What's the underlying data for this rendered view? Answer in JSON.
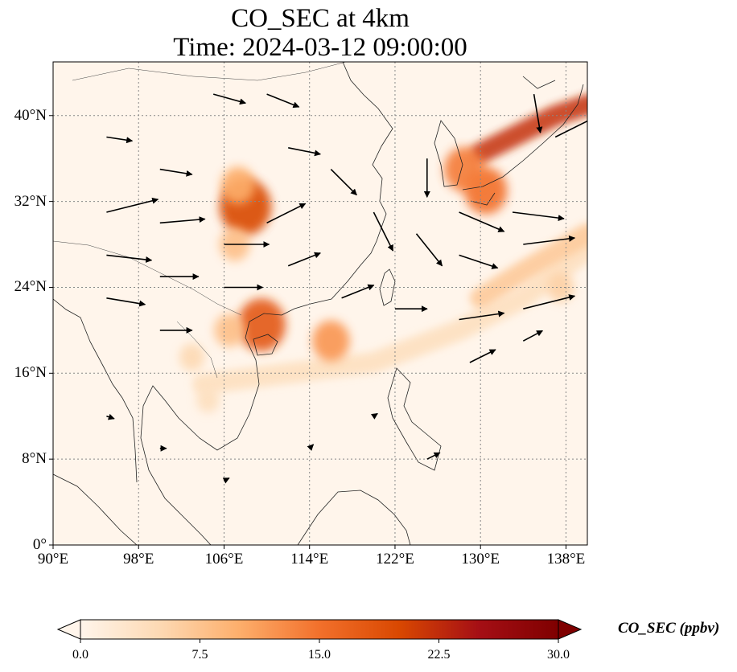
{
  "title": {
    "line1": "CO_SEC at 4km",
    "line2": "Time: 2024-03-12 09:00:00"
  },
  "map": {
    "lon_range": [
      90,
      140
    ],
    "lat_range": [
      0,
      45
    ],
    "lat_ticks": [
      {
        "value": 40,
        "label": "40°N"
      },
      {
        "value": 32,
        "label": "32°N"
      },
      {
        "value": 24,
        "label": "24°N"
      },
      {
        "value": 16,
        "label": "16°N"
      },
      {
        "value": 8,
        "label": "8°N"
      },
      {
        "value": 0,
        "label": "0°"
      }
    ],
    "lon_ticks": [
      {
        "value": 90,
        "label": "90°E"
      },
      {
        "value": 98,
        "label": "98°E"
      },
      {
        "value": 106,
        "label": "106°E"
      },
      {
        "value": 114,
        "label": "114°E"
      },
      {
        "value": 122,
        "label": "122°E"
      },
      {
        "value": 130,
        "label": "130°E"
      },
      {
        "value": 138,
        "label": "138°E"
      }
    ],
    "gridlines": true,
    "plume_areas": [
      {
        "lon": 108.0,
        "lat": 31.5,
        "value": 20
      },
      {
        "lon": 107.3,
        "lat": 33.5,
        "value": 10
      },
      {
        "lon": 107.0,
        "lat": 28.0,
        "value": 8
      },
      {
        "lon": 109.5,
        "lat": 20.5,
        "value": 18
      },
      {
        "lon": 106.5,
        "lat": 20.0,
        "value": 8
      },
      {
        "lon": 116.0,
        "lat": 19.0,
        "value": 12
      },
      {
        "lon": 103.0,
        "lat": 17.5,
        "value": 5
      },
      {
        "lon": 104.5,
        "lat": 13.5,
        "value": 4
      },
      {
        "lon": 130.5,
        "lat": 33.0,
        "value": 15
      },
      {
        "lon": 128.5,
        "lat": 35.0,
        "value": 14
      },
      {
        "lon": 137.5,
        "lat": 24.0,
        "value": 6
      }
    ],
    "plume_bands": [
      {
        "points": [
          [
            130,
            36.5
          ],
          [
            134,
            38.5
          ],
          [
            137,
            40.0
          ],
          [
            140,
            41.0
          ]
        ],
        "value": 22
      },
      {
        "points": [
          [
            104,
            15.0
          ],
          [
            112,
            16.0
          ],
          [
            120,
            17.0
          ],
          [
            128,
            20.0
          ],
          [
            134,
            23.0
          ],
          [
            140,
            27.5
          ]
        ],
        "value": 4
      },
      {
        "points": [
          [
            130,
            23.0
          ],
          [
            134,
            25.5
          ],
          [
            140,
            29.0
          ]
        ],
        "value": 7
      }
    ],
    "wind_vectors": [
      {
        "lon": 95,
        "lat": 31,
        "u": 4.0,
        "v": 1.0
      },
      {
        "lon": 95,
        "lat": 27,
        "u": 3.5,
        "v": -0.4
      },
      {
        "lon": 95,
        "lat": 23,
        "u": 3.0,
        "v": -0.5
      },
      {
        "lon": 100,
        "lat": 35,
        "u": 2.5,
        "v": -0.4
      },
      {
        "lon": 100,
        "lat": 30,
        "u": 3.5,
        "v": 0.3
      },
      {
        "lon": 100,
        "lat": 25,
        "u": 3.0,
        "v": 0.0
      },
      {
        "lon": 100,
        "lat": 20,
        "u": 2.5,
        "v": 0.0
      },
      {
        "lon": 106,
        "lat": 28,
        "u": 3.5,
        "v": 0.0
      },
      {
        "lon": 106,
        "lat": 24,
        "u": 3.0,
        "v": 0.0
      },
      {
        "lon": 110,
        "lat": 30,
        "u": 3.0,
        "v": 1.5
      },
      {
        "lon": 112,
        "lat": 26,
        "u": 2.5,
        "v": 1.0
      },
      {
        "lon": 117,
        "lat": 23,
        "u": 2.5,
        "v": 1.0
      },
      {
        "lon": 116,
        "lat": 35,
        "u": 2.0,
        "v": -2.0
      },
      {
        "lon": 120,
        "lat": 31,
        "u": 1.5,
        "v": -3.0
      },
      {
        "lon": 124,
        "lat": 29,
        "u": 2.0,
        "v": -2.5
      },
      {
        "lon": 125,
        "lat": 36,
        "u": 0.0,
        "v": -3.0
      },
      {
        "lon": 128,
        "lat": 31,
        "u": 3.5,
        "v": -1.5
      },
      {
        "lon": 128,
        "lat": 27,
        "u": 3.0,
        "v": -1.0
      },
      {
        "lon": 133,
        "lat": 31,
        "u": 4.0,
        "v": -0.5
      },
      {
        "lon": 134,
        "lat": 28,
        "u": 4.0,
        "v": 0.5
      },
      {
        "lon": 122,
        "lat": 22,
        "u": 2.5,
        "v": 0.0
      },
      {
        "lon": 128,
        "lat": 21,
        "u": 3.5,
        "v": 0.5
      },
      {
        "lon": 134,
        "lat": 22,
        "u": 4.0,
        "v": 1.0
      },
      {
        "lon": 129,
        "lat": 17,
        "u": 2.0,
        "v": 1.0
      },
      {
        "lon": 134,
        "lat": 19,
        "u": 1.5,
        "v": 0.8
      },
      {
        "lon": 137,
        "lat": 38,
        "u": 3.0,
        "v": 1.5
      },
      {
        "lon": 135,
        "lat": 42,
        "u": 0.5,
        "v": -3.0
      },
      {
        "lon": 105,
        "lat": 42,
        "u": 2.5,
        "v": -0.7
      },
      {
        "lon": 110,
        "lat": 42,
        "u": 2.5,
        "v": -1.0
      },
      {
        "lon": 95,
        "lat": 38,
        "u": 2.0,
        "v": -0.3
      },
      {
        "lon": 112,
        "lat": 37,
        "u": 2.5,
        "v": -0.5
      },
      {
        "lon": 95,
        "lat": 12,
        "u": 0.6,
        "v": -0.2
      },
      {
        "lon": 100,
        "lat": 9,
        "u": 0.5,
        "v": 0.0
      },
      {
        "lon": 106,
        "lat": 6,
        "u": 0.4,
        "v": 0.2
      },
      {
        "lon": 114,
        "lat": 9,
        "u": 0.3,
        "v": 0.3
      },
      {
        "lon": 120,
        "lat": 12,
        "u": 0.3,
        "v": 0.2
      },
      {
        "lon": 125,
        "lat": 8,
        "u": 1.0,
        "v": 0.5
      }
    ]
  },
  "colorbar": {
    "label": "CO_SEC (ppbv)",
    "min": 0,
    "max": 30,
    "ticks": [
      {
        "value": 0,
        "label": "0.0"
      },
      {
        "value": 7.5,
        "label": "7.5"
      },
      {
        "value": 15,
        "label": "15.0"
      },
      {
        "value": 22.5,
        "label": "22.5"
      },
      {
        "value": 30,
        "label": "30.0"
      }
    ],
    "colors": [
      "#fff5eb",
      "#fdd9b3",
      "#fdae6b",
      "#f2702b",
      "#d94801",
      "#a50f15",
      "#7f0000"
    ]
  }
}
